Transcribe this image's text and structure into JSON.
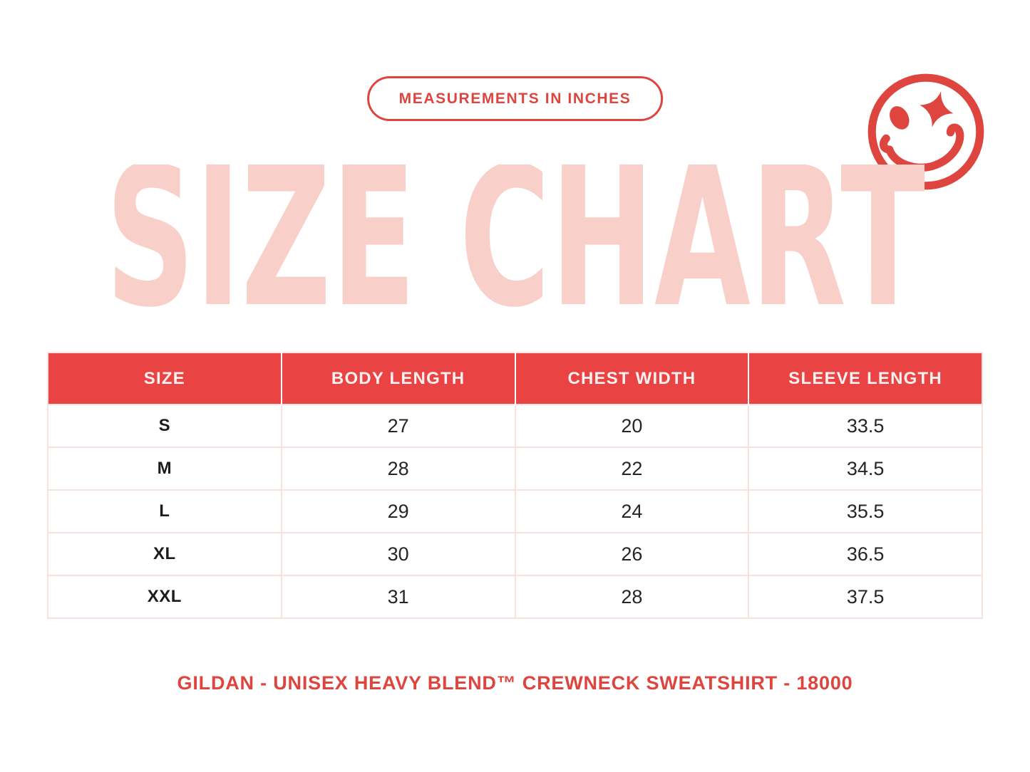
{
  "badge": {
    "label": "MEASUREMENTS IN INCHES"
  },
  "title": {
    "text": "SIZE CHART"
  },
  "footer": {
    "text": "GILDAN - UNISEX HEAVY BLEND™ CREWNECK SWEATSHIRT - 18000"
  },
  "icons": {
    "smiley": "winking-smiley-with-sparkle-eye"
  },
  "colors": {
    "accent_red": "#de453f",
    "header_red": "#ea4343",
    "title_pink": "#f9cfc9",
    "grid_pink": "#f9e2de",
    "body_text": "#262626",
    "header_text": "#fdf2f1",
    "background": "#ffffff"
  },
  "chart_data": {
    "type": "table",
    "title": "SIZE CHART",
    "units_note": "MEASUREMENTS IN INCHES",
    "columns": [
      "SIZE",
      "BODY LENGTH",
      "CHEST WIDTH",
      "SLEEVE LENGTH"
    ],
    "rows": [
      [
        "S",
        "27",
        "20",
        "33.5"
      ],
      [
        "M",
        "28",
        "22",
        "34.5"
      ],
      [
        "L",
        "29",
        "24",
        "35.5"
      ],
      [
        "XL",
        "30",
        "26",
        "36.5"
      ],
      [
        "XXL",
        "31",
        "28",
        "37.5"
      ]
    ]
  }
}
